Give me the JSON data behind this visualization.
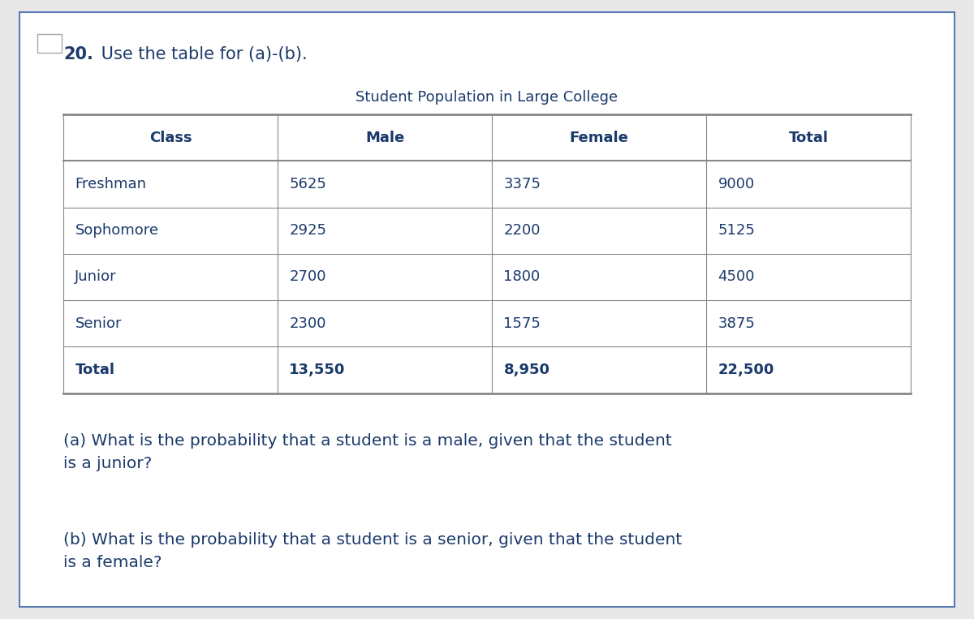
{
  "title_number": "20.",
  "title_text": " Use the table for (a)-(b).",
  "table_title": "Student Population in Large College",
  "headers": [
    "Class",
    "Male",
    "Female",
    "Total"
  ],
  "rows": [
    [
      "Freshman",
      "5625",
      "3375",
      "9000"
    ],
    [
      "Sophomore",
      "2925",
      "2200",
      "5125"
    ],
    [
      "Junior",
      "2700",
      "1800",
      "4500"
    ],
    [
      "Senior",
      "2300",
      "1575",
      "3875"
    ],
    [
      "Total",
      "13,550",
      "8,950",
      "22,500"
    ]
  ],
  "question_a": "(a) What is the probability that a student is a male, given that the student\nis a junior?",
  "question_b": "(b) What is the probability that a student is a senior, given that the student\nis a female?",
  "text_color": "#1a3a6b",
  "border_color": "#5a7ab5",
  "table_line_color": "#888888",
  "background_color": "#ffffff",
  "page_background": "#e8e8e8",
  "corner_icon_color": "#cccccc"
}
